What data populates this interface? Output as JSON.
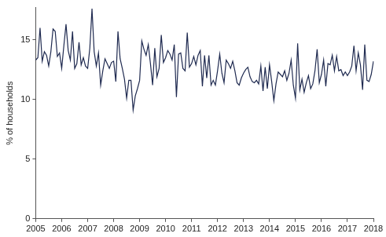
{
  "chart_data": {
    "type": "line",
    "y_label": "% of households",
    "categories": [
      "2005",
      null,
      null,
      null,
      null,
      null,
      null,
      null,
      null,
      null,
      null,
      null,
      "2006",
      null,
      null,
      null,
      null,
      null,
      null,
      null,
      null,
      null,
      null,
      null,
      "2007",
      null,
      null,
      null,
      null,
      null,
      null,
      null,
      null,
      null,
      null,
      null,
      "2008",
      null,
      null,
      null,
      null,
      null,
      null,
      null,
      null,
      null,
      null,
      null,
      "2009",
      null,
      null,
      null,
      null,
      null,
      null,
      null,
      null,
      null,
      null,
      null,
      "2010",
      null,
      null,
      null,
      null,
      null,
      null,
      null,
      null,
      null,
      null,
      null,
      "2011",
      null,
      null,
      null,
      null,
      null,
      null,
      null,
      null,
      null,
      null,
      null,
      "2012",
      null,
      null,
      null,
      null,
      null,
      null,
      null,
      null,
      null,
      null,
      null,
      "2013",
      null,
      null,
      null,
      null,
      null,
      null,
      null,
      null,
      null,
      null,
      null,
      "2014",
      null,
      null,
      null,
      null,
      null,
      null,
      null,
      null,
      null,
      null,
      null,
      "2015",
      null,
      null,
      null,
      null,
      null,
      null,
      null,
      null,
      null,
      null,
      null,
      "2016",
      null,
      null,
      null,
      null,
      null,
      null,
      null,
      null,
      null,
      null,
      null,
      "2017",
      null,
      null,
      null,
      null,
      null,
      null,
      null,
      null,
      null,
      null,
      null,
      "2018"
    ],
    "values": [
      13.3,
      13.5,
      16.0,
      13.2,
      14.0,
      13.7,
      12.8,
      14.0,
      15.9,
      15.7,
      13.6,
      13.9,
      12.6,
      14.5,
      16.3,
      14.1,
      13.3,
      15.7,
      12.6,
      13.0,
      14.8,
      12.9,
      13.5,
      12.8,
      12.6,
      14.3,
      17.6,
      14.0,
      12.8,
      13.9,
      11.2,
      12.4,
      13.4,
      13.0,
      12.6,
      13.1,
      13.2,
      11.5,
      15.7,
      13.4,
      12.6,
      11.7,
      10.1,
      11.6,
      11.6,
      9.1,
      10.3,
      10.9,
      11.6,
      14.9,
      14.2,
      13.7,
      14.6,
      13.0,
      11.2,
      14.3,
      11.9,
      12.6,
      15.4,
      13.1,
      13.5,
      14.1,
      13.8,
      13.3,
      14.6,
      10.2,
      13.8,
      13.9,
      12.6,
      12.4,
      15.6,
      12.7,
      13.0,
      13.6,
      12.9,
      13.7,
      14.1,
      11.1,
      13.7,
      11.8,
      13.7,
      11.2,
      11.6,
      11.2,
      12.4,
      13.8,
      12.2,
      11.4,
      13.3,
      13.0,
      12.6,
      13.2,
      12.4,
      11.4,
      11.2,
      11.8,
      12.2,
      12.5,
      12.7,
      11.9,
      11.5,
      11.4,
      11.6,
      11.3,
      12.8,
      10.7,
      12.7,
      10.9,
      12.9,
      11.5,
      9.9,
      11.3,
      12.3,
      12.1,
      11.9,
      12.4,
      11.6,
      12.2,
      13.3,
      11.2,
      10.1,
      14.7,
      10.8,
      11.7,
      10.6,
      11.4,
      12.0,
      10.9,
      11.3,
      12.4,
      14.2,
      11.4,
      12.1,
      13.3,
      11.1,
      13.0,
      12.9,
      13.7,
      12.4,
      13.6,
      12.4,
      12.5,
      12.0,
      12.3,
      12.0,
      12.3,
      12.8,
      14.5,
      12.4,
      13.9,
      12.9,
      10.8,
      14.6,
      11.6,
      11.5,
      12.1,
      13.2
    ],
    "color": "#1f2a50",
    "ylim": [
      0,
      17.7
    ],
    "yticks": [
      0,
      5,
      10,
      15
    ],
    "grid": false,
    "line_style": "solid"
  }
}
